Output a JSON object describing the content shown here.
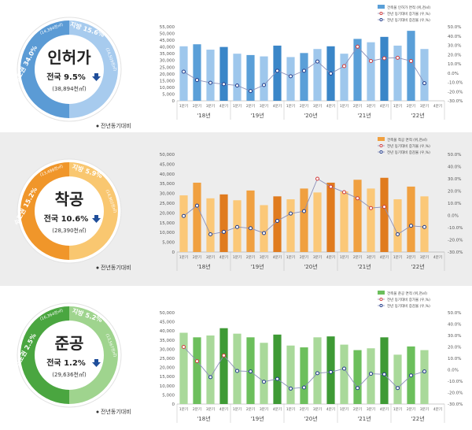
{
  "panels": [
    {
      "key": "permit",
      "title": "인허가",
      "national": "전국 9.5%",
      "national_sub": "(38,894천㎡)",
      "metro": "수도권 34.0%",
      "metro_sub": "(14,384천㎡)",
      "local": "지방 15.6%",
      "local_sub": "(24,509천㎡)",
      "yoy_note": "전년동기대비",
      "colors": {
        "light": "#9ec7ec",
        "dark": "#3a86c8",
        "mid": "#5a9fd8",
        "bg": "#ffffff",
        "ring_metro": "#5b9bd5",
        "ring_local": "#a7cbee",
        "text": "#1f3c6e"
      },
      "legend": [
        "건축물 인허가 면적 (위,천㎡)",
        "전년 동기대비 증가율 (우,%)",
        "전년 동기대비 증감율 (우,%)"
      ],
      "chart_data": {
        "type": "bar",
        "years": [
          "'18년",
          "'19년",
          "'20년",
          "'21년",
          "'22년"
        ],
        "categories": [
          "1분기",
          "2분기",
          "3분기",
          "4분기",
          "1분기",
          "2분기",
          "3분기",
          "4분기",
          "1분기",
          "2분기",
          "3분기",
          "4분기",
          "1분기",
          "2분기",
          "3분기",
          "4분기",
          "1분기",
          "2분기",
          "3분기",
          "4분기"
        ],
        "values": [
          40500,
          42000,
          38000,
          40000,
          35000,
          34000,
          33000,
          41000,
          32500,
          35500,
          38500,
          40500,
          35000,
          46000,
          43500,
          47500,
          41000,
          52000,
          38500,
          null
        ],
        "rate_a": [
          null,
          null,
          null,
          null,
          null,
          null,
          null,
          null,
          null,
          null,
          null,
          null,
          7.5,
          28.5,
          13.0,
          16.0,
          16.5,
          13.0,
          null,
          null
        ],
        "rate_b": [
          1.5,
          -7.5,
          -10.5,
          -12.0,
          -13.5,
          -19.5,
          -13.0,
          2.5,
          -3.5,
          2.5,
          12.5,
          -0.5,
          null,
          null,
          null,
          null,
          null,
          null,
          -11.0,
          null
        ],
        "ylim_left": [
          0,
          55000
        ],
        "ylim_right": [
          -30,
          50
        ],
        "left_ticks": [
          "0",
          "5,000",
          "10,000",
          "15,000",
          "20,000",
          "25,000",
          "30,000",
          "35,000",
          "40,000",
          "45,000",
          "50,000",
          "55,000"
        ],
        "right_ticks": [
          "-30.0%",
          "-20.0%",
          "-10.0%",
          "0.0%",
          "10.0%",
          "20.0%",
          "30.0%",
          "40.0%",
          "50.0%"
        ]
      }
    },
    {
      "key": "start",
      "title": "착공",
      "national": "전국 10.6%",
      "national_sub": "(28,390천㎡)",
      "metro": "수도권 15.2%",
      "metro_sub": "(13,488천㎡)",
      "local": "지방 5.9%",
      "local_sub": "(14,902천㎡)",
      "yoy_note": "전년동기대비",
      "colors": {
        "light": "#fbc878",
        "dark": "#e07b1e",
        "mid": "#f0a040",
        "bg": "#ededed",
        "ring_metro": "#f0962a",
        "ring_local": "#f9c770",
        "text": "#5a3a10"
      },
      "legend": [
        "건축물 착공 면적 (위,천㎡)",
        "전년 동기대비 증가율 (우,%)",
        "전년 동기대비 증감율 (우,%)"
      ],
      "chart_data": {
        "type": "bar",
        "years": [
          "'18년",
          "'19년",
          "'20년",
          "'21년",
          "'22년"
        ],
        "categories": [
          "1분기",
          "2분기",
          "3분기",
          "4분기",
          "1분기",
          "2분기",
          "3분기",
          "4분기",
          "1분기",
          "2분기",
          "3분기",
          "4분기",
          "1분기",
          "2분기",
          "3분기",
          "4분기",
          "1분기",
          "2분기",
          "3분기",
          "4분기"
        ],
        "values": [
          29000,
          35500,
          27500,
          29500,
          26500,
          31500,
          24000,
          28500,
          27000,
          32500,
          30500,
          35500,
          31000,
          37000,
          32500,
          38000,
          27000,
          33500,
          28500,
          null
        ],
        "rate_a": [
          null,
          null,
          null,
          null,
          null,
          null,
          null,
          null,
          null,
          null,
          30.0,
          23.5,
          19.0,
          14.0,
          6.0,
          7.0,
          null,
          null,
          null,
          null
        ],
        "rate_b": [
          -0.5,
          8.0,
          -15.5,
          -13.5,
          -9.5,
          -10.5,
          -14.5,
          -4.5,
          1.5,
          3.5,
          null,
          null,
          null,
          null,
          null,
          null,
          -15.5,
          -8.5,
          -9.5,
          null
        ],
        "ylim_left": [
          0,
          50000
        ],
        "ylim_right": [
          -30,
          50
        ],
        "left_ticks": [
          "0",
          "5,000",
          "10,000",
          "15,000",
          "20,000",
          "25,000",
          "30,000",
          "35,000",
          "40,000",
          "45,000",
          "50,000"
        ],
        "right_ticks": [
          "-30.0%",
          "-20.0%",
          "-10.0%",
          "0.0%",
          "10.0%",
          "20.0%",
          "30.0%",
          "40.0%",
          "50.0%"
        ]
      }
    },
    {
      "key": "complete",
      "title": "준공",
      "national": "전국 1.2%",
      "national_sub": "(29,636천㎡)",
      "metro": "수도권 2.5%",
      "metro_sub": "(16,364천㎡)",
      "local": "지방 5.2%",
      "local_sub": "(13,567천㎡)",
      "yoy_note": "전년동기대비",
      "colors": {
        "light": "#a9d99a",
        "dark": "#3e9a35",
        "mid": "#6cbf5c",
        "bg": "#ffffff",
        "ring_metro": "#4aa640",
        "ring_local": "#9fd48e",
        "text": "#1e4a16"
      },
      "legend": [
        "건축물 준공 면적 (위,천㎡)",
        "전년 동기대비 증가율 (우,%)",
        "전년 동기대비 증감율 (우,%)"
      ],
      "chart_data": {
        "type": "bar",
        "years": [
          "'18년",
          "'19년",
          "'20년",
          "'21년",
          "'22년"
        ],
        "categories": [
          "1분기",
          "2분기",
          "3분기",
          "4분기",
          "1분기",
          "2분기",
          "3분기",
          "4분기",
          "1분기",
          "2분기",
          "3분기",
          "4분기",
          "1분기",
          "2분기",
          "3분기",
          "4분기",
          "1분기",
          "2분기",
          "3분기",
          "4분기"
        ],
        "values": [
          39000,
          36500,
          37500,
          41500,
          38500,
          36500,
          33500,
          38000,
          32000,
          31000,
          36500,
          37000,
          32500,
          29500,
          30500,
          36500,
          27000,
          31500,
          29500,
          null
        ],
        "rate_a": [
          20.0,
          7.5,
          null,
          12.5,
          null,
          null,
          null,
          null,
          null,
          null,
          null,
          null,
          null,
          null,
          null,
          null,
          null,
          null,
          null,
          null
        ],
        "rate_b": [
          null,
          null,
          -6.5,
          null,
          -1.0,
          -1.5,
          -10.5,
          -8.0,
          -16.5,
          -15.5,
          -3.0,
          -2.0,
          1.0,
          -16.0,
          -3.5,
          -4.0,
          -16.0,
          -5.0,
          -1.5,
          null
        ],
        "ylim_left": [
          0,
          50000
        ],
        "ylim_right": [
          -30,
          50
        ],
        "left_ticks": [
          "0",
          "5,000",
          "10,000",
          "15,000",
          "20,000",
          "25,000",
          "30,000",
          "35,000",
          "40,000",
          "45,000",
          "50,000"
        ],
        "right_ticks": [
          "-30.0%",
          "-20.0%",
          "-10.0%",
          "0.0%",
          "10.0%",
          "20.0%",
          "30.0%",
          "40.0%",
          "50.0%"
        ]
      }
    }
  ]
}
